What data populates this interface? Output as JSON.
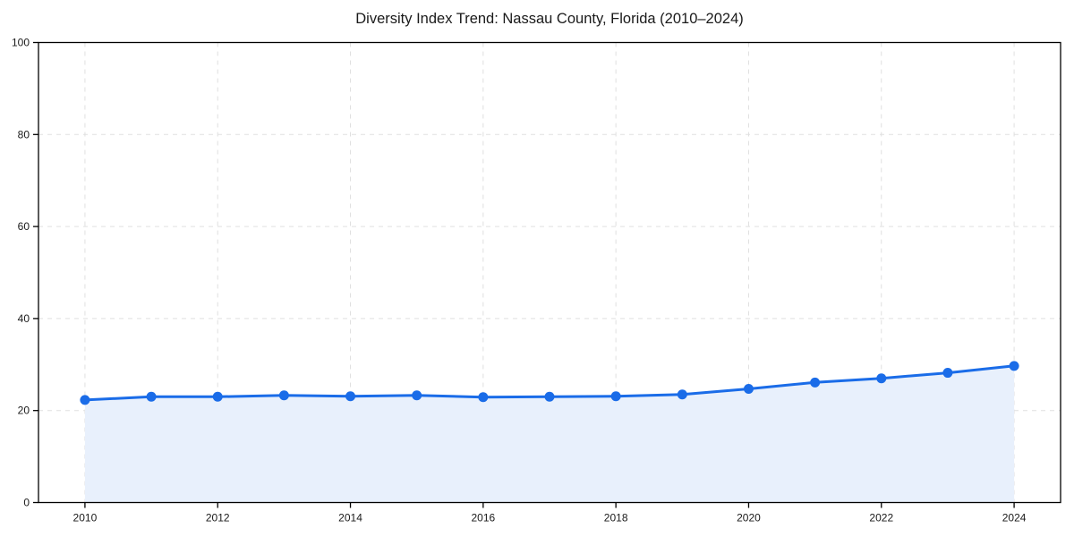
{
  "chart_data": {
    "type": "line",
    "title": "Diversity Index Trend: Nassau County, Florida (2010–2024)",
    "x": [
      2010,
      2011,
      2012,
      2013,
      2014,
      2015,
      2016,
      2017,
      2018,
      2019,
      2020,
      2021,
      2022,
      2023,
      2024
    ],
    "series": [
      {
        "name": "Diversity Index",
        "values": [
          22.3,
          23.0,
          23.0,
          23.3,
          23.1,
          23.3,
          22.9,
          23.0,
          23.1,
          23.5,
          24.7,
          26.1,
          27.0,
          28.2,
          29.7
        ]
      }
    ],
    "xlabel": "",
    "ylabel": "",
    "xticks": [
      2010,
      2012,
      2014,
      2016,
      2018,
      2020,
      2022,
      2024
    ],
    "yticks": [
      0,
      20,
      40,
      60,
      80,
      100
    ],
    "xlim": [
      2009.3,
      2024.7
    ],
    "ylim": [
      0,
      100
    ],
    "grid": true,
    "grid_style": "dashed",
    "legend": "none",
    "marker": "circle",
    "area_fill": true,
    "colors": {
      "line": "#1a6ce8",
      "marker": "#1a6ce8",
      "fill": "#e8f0fc",
      "grid": "#e0e0e0",
      "spine": "#000000",
      "text": "#1a1a1a",
      "background": "#ffffff"
    }
  }
}
